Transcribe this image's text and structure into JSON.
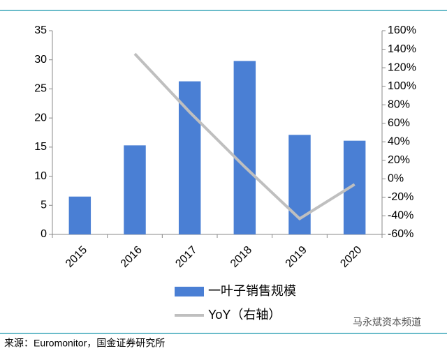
{
  "chart_data": {
    "type": "bar_line",
    "categories": [
      "2015",
      "2016",
      "2017",
      "2018",
      "2019",
      "2020"
    ],
    "series": [
      {
        "name": "一叶子销售规模",
        "color": "#4a7fd4",
        "type": "bar",
        "values": [
          6.5,
          15.3,
          26.3,
          29.8,
          17.1,
          16.1
        ]
      },
      {
        "name": "YoY（右轴）",
        "color": "#bfbfbf",
        "type": "line",
        "axis": "y2",
        "values": [
          null,
          135,
          72,
          13,
          -43,
          -6
        ]
      }
    ],
    "ylim": [
      0,
      35
    ],
    "yticks": [
      0,
      5,
      10,
      15,
      20,
      25,
      30,
      35
    ],
    "y2lim": [
      -60,
      160
    ],
    "y2ticks": [
      {
        "value": -60,
        "label": "-60%"
      },
      {
        "value": -40,
        "label": "-40%"
      },
      {
        "value": -20,
        "label": "-20%"
      },
      {
        "value": 0,
        "label": "0%"
      },
      {
        "value": 20,
        "label": "20%"
      },
      {
        "value": 40,
        "label": "40%"
      },
      {
        "value": 60,
        "label": "60%"
      },
      {
        "value": 80,
        "label": "80%"
      },
      {
        "value": 100,
        "label": "100%"
      },
      {
        "value": 120,
        "label": "120%"
      },
      {
        "value": 140,
        "label": "140%"
      },
      {
        "value": 160,
        "label": "160%"
      }
    ],
    "grid": false,
    "source": "来源：Euromonitor，国金证券研究所",
    "watermark": "马永斌资本频道"
  }
}
